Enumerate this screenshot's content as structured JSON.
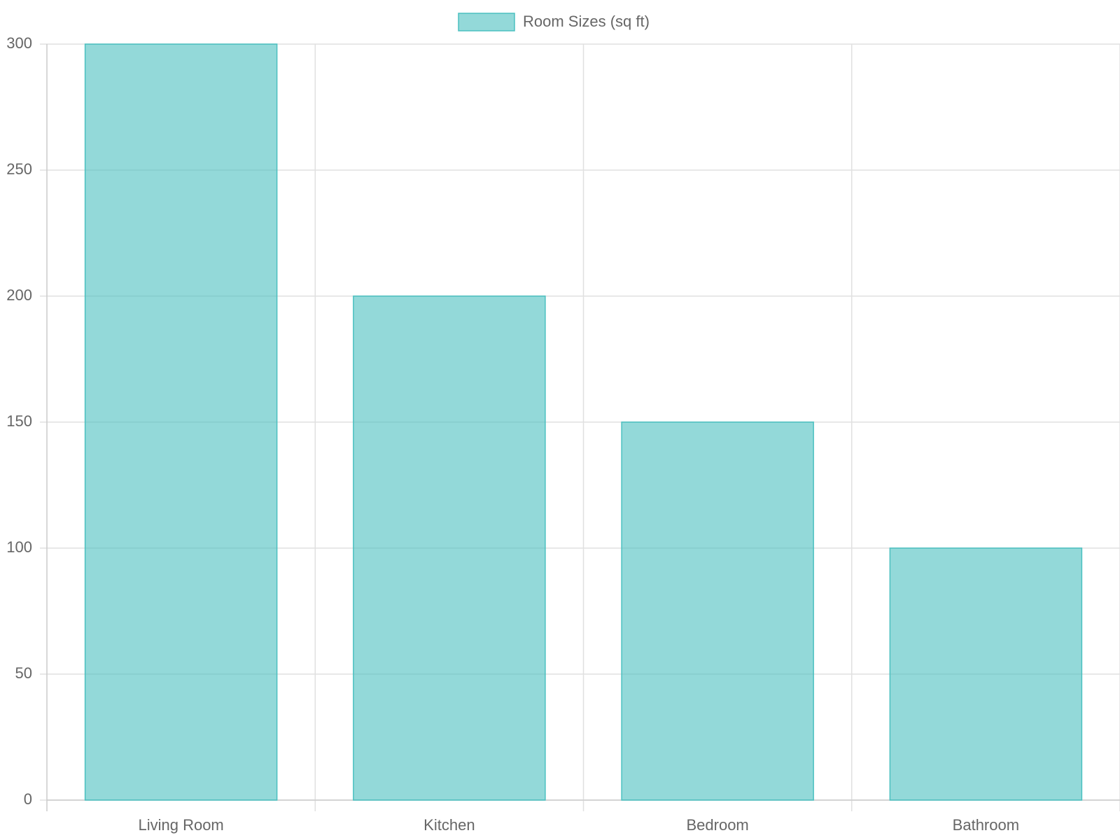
{
  "chart_data": {
    "type": "bar",
    "categories": [
      "Living Room",
      "Kitchen",
      "Bedroom",
      "Bathroom"
    ],
    "series": [
      {
        "name": "Room Sizes (sq ft)",
        "color": "#4bc0c0",
        "values": [
          300,
          200,
          150,
          100
        ]
      }
    ],
    "ylim": [
      0,
      300
    ],
    "yticks": [
      0,
      50,
      100,
      150,
      200,
      250,
      300
    ],
    "grid": true,
    "legend": "top"
  }
}
